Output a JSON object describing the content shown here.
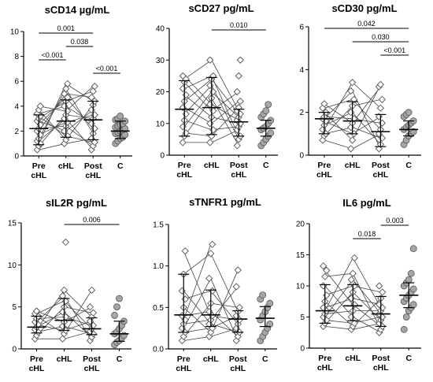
{
  "chart_data": [
    {
      "type": "scatter",
      "title": "sCD14 µg/mL",
      "categories": [
        "Pre cHL",
        "cHL",
        "Post cHL",
        "C"
      ],
      "ylim": [
        0,
        10
      ],
      "yticks": [
        "0",
        "2",
        "4",
        "6",
        "8",
        "10"
      ],
      "paired": true,
      "series": [
        {
          "category": "Pre cHL",
          "median": 2.2,
          "iqr": [
            0.9,
            3.3
          ],
          "values": [
            0.5,
            0.8,
            1.0,
            1.2,
            1.4,
            1.7,
            2.0,
            2.2,
            2.5,
            2.8,
            3.0,
            3.2,
            3.4,
            3.7,
            4.0
          ]
        },
        {
          "category": "cHL",
          "median": 2.8,
          "iqr": [
            1.5,
            4.5
          ],
          "values": [
            1.0,
            1.3,
            1.6,
            2.0,
            2.4,
            2.7,
            3.0,
            3.3,
            3.6,
            4.0,
            4.4,
            4.7,
            5.0,
            5.4,
            5.8
          ]
        },
        {
          "category": "Post cHL",
          "median": 2.9,
          "iqr": [
            1.3,
            4.4
          ],
          "values": [
            0.5,
            0.8,
            1.1,
            1.4,
            1.8,
            2.2,
            2.6,
            3.0,
            3.3,
            3.7,
            4.1,
            4.4,
            4.7,
            5.2,
            5.6
          ]
        },
        {
          "category": "C",
          "median": 2.0,
          "iqr": [
            1.4,
            2.8
          ],
          "values": [
            1.0,
            1.2,
            1.4,
            1.5,
            1.7,
            1.8,
            1.9,
            2.0,
            2.1,
            2.2,
            2.3,
            2.4,
            2.5,
            2.6,
            2.8,
            2.9,
            3.0,
            3.2
          ]
        }
      ],
      "pvalues": [
        {
          "from": 0,
          "to": 2,
          "label": "0.001"
        },
        {
          "from": 1,
          "to": 2,
          "label": "0.038"
        },
        {
          "from": 0,
          "to": 1,
          "label": "<0.001"
        },
        {
          "from": 2,
          "to": 3,
          "label": "<0.001"
        }
      ]
    },
    {
      "type": "scatter",
      "title": "sCD27 pg/mL",
      "categories": [
        "Pre cHL",
        "cHL",
        "Post cHL",
        "C"
      ],
      "ylim": [
        0,
        40
      ],
      "yticks": [
        "0",
        "10",
        "20",
        "30",
        "40"
      ],
      "paired": true,
      "series": [
        {
          "category": "Pre cHL",
          "median": 14.5,
          "iqr": [
            6.0,
            23.5
          ],
          "values": [
            4,
            6,
            7,
            9,
            11,
            13,
            15,
            17,
            19,
            21,
            23,
            24,
            25
          ]
        },
        {
          "category": "cHL",
          "median": 15.0,
          "iqr": [
            6.5,
            24.5
          ],
          "values": [
            4,
            6,
            8,
            10,
            12,
            14,
            16,
            18,
            20,
            22,
            24,
            25,
            30
          ]
        },
        {
          "category": "Post cHL",
          "median": 10.5,
          "iqr": [
            6.0,
            14.5
          ],
          "values": [
            3,
            5,
            6,
            8,
            9,
            10,
            11,
            12,
            13,
            14,
            15,
            17,
            20,
            25,
            30
          ]
        },
        {
          "category": "C",
          "median": 8.5,
          "iqr": [
            6.0,
            11.0
          ],
          "values": [
            3,
            4,
            5,
            6,
            7,
            8,
            8.5,
            9,
            10,
            11,
            12,
            13,
            14,
            16
          ]
        }
      ],
      "pvalues": [
        {
          "from": 1,
          "to": 3,
          "label": "0.010"
        }
      ]
    },
    {
      "type": "scatter",
      "title": "sCD30 pg/mL",
      "categories": [
        "Pre cHL",
        "cHL",
        "Post cHL",
        "C"
      ],
      "ylim": [
        0,
        6
      ],
      "yticks": [
        "0",
        "2",
        "4",
        "6"
      ],
      "paired": true,
      "series": [
        {
          "category": "Pre cHL",
          "median": 1.7,
          "iqr": [
            1.0,
            2.0
          ],
          "values": [
            0.7,
            0.9,
            1.0,
            1.2,
            1.4,
            1.6,
            1.7,
            1.8,
            2.0,
            2.2,
            2.4
          ]
        },
        {
          "category": "cHL",
          "median": 1.6,
          "iqr": [
            1.0,
            2.5
          ],
          "values": [
            0.3,
            0.7,
            1.0,
            1.3,
            1.5,
            1.7,
            2.0,
            2.3,
            2.6,
            3.0,
            3.4
          ]
        },
        {
          "category": "Post cHL",
          "median": 1.1,
          "iqr": [
            0.4,
            1.9
          ],
          "values": [
            0.3,
            0.5,
            0.8,
            1.0,
            1.2,
            1.5,
            1.8,
            2.2,
            2.6,
            3.2,
            3.3
          ]
        },
        {
          "category": "C",
          "median": 1.2,
          "iqr": [
            0.9,
            1.6
          ],
          "values": [
            0.5,
            0.7,
            0.9,
            1.0,
            1.1,
            1.2,
            1.3,
            1.4,
            1.5,
            1.6,
            1.8,
            1.9,
            2.0
          ]
        }
      ],
      "pvalues": [
        {
          "from": 0,
          "to": 3,
          "label": "0.042"
        },
        {
          "from": 1,
          "to": 3,
          "label": "0.030"
        },
        {
          "from": 2,
          "to": 3,
          "label": "<0.001"
        }
      ]
    },
    {
      "type": "scatter",
      "title": "sIL2R pg/mL",
      "categories": [
        "Pre cHL",
        "cHL",
        "Post cHL",
        "C"
      ],
      "ylim": [
        0,
        15
      ],
      "yticks": [
        "0",
        "5",
        "10",
        "15"
      ],
      "paired": true,
      "series": [
        {
          "category": "Pre cHL",
          "median": 2.6,
          "iqr": [
            1.9,
            3.9
          ],
          "values": [
            1.2,
            1.6,
            2.0,
            2.3,
            2.6,
            2.9,
            3.2,
            3.6,
            3.9,
            4.2,
            4.5
          ]
        },
        {
          "category": "cHL",
          "median": 3.4,
          "iqr": [
            2.2,
            6.0
          ],
          "values": [
            1.2,
            1.8,
            2.2,
            2.7,
            3.2,
            3.8,
            4.4,
            5.0,
            5.7,
            6.3,
            7.0,
            12.7
          ]
        },
        {
          "category": "Post cHL",
          "median": 2.4,
          "iqr": [
            1.7,
            3.7
          ],
          "values": [
            1.0,
            1.4,
            1.8,
            2.1,
            2.4,
            2.8,
            3.3,
            3.8,
            4.3,
            5.0,
            7.0
          ]
        },
        {
          "category": "C",
          "median": 1.8,
          "iqr": [
            0.9,
            3.3
          ],
          "values": [
            0.5,
            0.8,
            1.0,
            1.3,
            1.6,
            1.8,
            2.0,
            2.4,
            2.8,
            3.3,
            4.0,
            5.0,
            6.0
          ]
        }
      ],
      "pvalues": [
        {
          "from": 1,
          "to": 3,
          "label": "0.006"
        }
      ]
    },
    {
      "type": "scatter",
      "title": "sTNFR1 pg/mL",
      "categories": [
        "Pre cHL",
        "cHL",
        "Post cHL",
        "C"
      ],
      "ylim": [
        0,
        1.5
      ],
      "yticks": [
        "0.0",
        "0.5",
        "1.0",
        "1.5"
      ],
      "paired": true,
      "series": [
        {
          "category": "Pre cHL",
          "median": 0.41,
          "iqr": [
            0.2,
            0.9
          ],
          "values": [
            0.1,
            0.15,
            0.2,
            0.25,
            0.3,
            0.35,
            0.4,
            0.5,
            0.6,
            0.7,
            0.9,
            1.18
          ]
        },
        {
          "category": "cHL",
          "median": 0.41,
          "iqr": [
            0.27,
            0.71
          ],
          "values": [
            0.15,
            0.2,
            0.25,
            0.3,
            0.35,
            0.4,
            0.45,
            0.55,
            0.7,
            0.85,
            1.15,
            1.26
          ]
        },
        {
          "category": "Post cHL",
          "median": 0.36,
          "iqr": [
            0.2,
            0.46
          ],
          "values": [
            0.1,
            0.15,
            0.2,
            0.25,
            0.3,
            0.35,
            0.4,
            0.45,
            0.5,
            0.75,
            0.95
          ]
        },
        {
          "category": "C",
          "median": 0.37,
          "iqr": [
            0.27,
            0.51
          ],
          "values": [
            0.1,
            0.15,
            0.2,
            0.25,
            0.3,
            0.35,
            0.4,
            0.45,
            0.5,
            0.55,
            0.6,
            0.65
          ]
        }
      ],
      "pvalues": []
    },
    {
      "type": "scatter",
      "title": "IL6 pg/mL",
      "categories": [
        "Pre cHL",
        "cHL",
        "Post cHL",
        "C"
      ],
      "ylim": [
        0,
        20
      ],
      "yticks": [
        "0",
        "5",
        "10",
        "15",
        "20"
      ],
      "paired": true,
      "series": [
        {
          "category": "Pre cHL",
          "median": 6.0,
          "iqr": [
            4.0,
            10.2
          ],
          "values": [
            3.5,
            4.0,
            4.5,
            5.0,
            5.5,
            6.0,
            6.5,
            7.5,
            8.5,
            10.0,
            11.5,
            12.5,
            13.2
          ]
        },
        {
          "category": "cHL",
          "median": 6.8,
          "iqr": [
            4.4,
            10.2
          ],
          "values": [
            3.0,
            3.5,
            4.0,
            5.0,
            6.0,
            7.0,
            8.0,
            9.0,
            10.0,
            11.0,
            12.0,
            14.5
          ]
        },
        {
          "category": "Post cHL",
          "median": 5.5,
          "iqr": [
            3.5,
            8.3
          ],
          "values": [
            2.5,
            3.0,
            3.5,
            4.0,
            4.5,
            5.0,
            5.5,
            6.0,
            6.5,
            7.0,
            8.0,
            9.0,
            10.0
          ]
        },
        {
          "category": "C",
          "median": 8.5,
          "iqr": [
            6.5,
            10.5
          ],
          "values": [
            3.0,
            5.0,
            6.0,
            6.5,
            7.0,
            7.5,
            8.0,
            8.5,
            9.0,
            9.5,
            10.0,
            10.5,
            11.0,
            12.0,
            16.0
          ]
        }
      ],
      "pvalues": [
        {
          "from": 2,
          "to": 3,
          "label": "0.003"
        },
        {
          "from": 1,
          "to": 2,
          "label": "0.018"
        }
      ]
    }
  ]
}
